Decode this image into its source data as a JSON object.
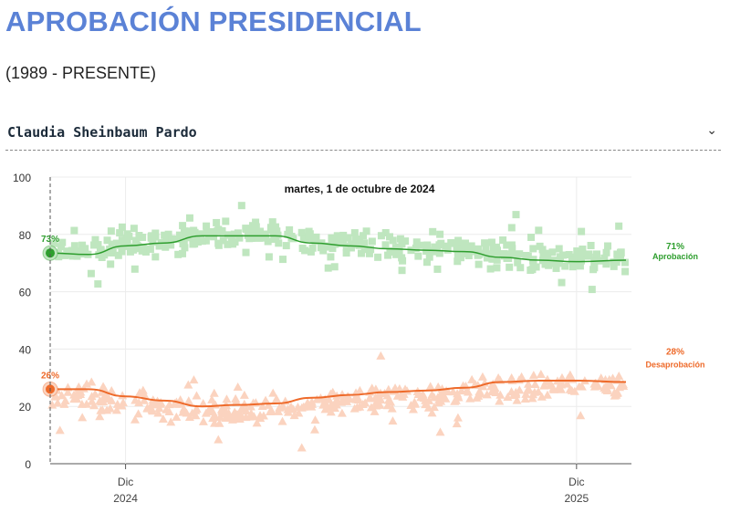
{
  "header": {
    "title": "APROBACIÓN PRESIDENCIAL",
    "subtitle": "(1989 - PRESENTE)"
  },
  "selector": {
    "value": "Claudia Sheinbaum Pardo",
    "icon": "chevron-down-icon"
  },
  "chart_data": {
    "type": "scatter",
    "hover_date": "martes, 1 de octubre de 2024",
    "ylim": [
      0,
      100
    ],
    "yticks": [
      0,
      20,
      40,
      60,
      80,
      100
    ],
    "xlim": [
      "2024-10-01",
      "2026-01-10"
    ],
    "xticks": [
      {
        "date": "2024-12-01",
        "label": "Dic",
        "year": "2024"
      },
      {
        "date": "2025-12-01",
        "label": "Dic",
        "year": "2025"
      }
    ],
    "grid": true,
    "series": [
      {
        "name": "Aprobación",
        "color": "#2e9e2e",
        "point_color": "#bfe6bf",
        "marker": "square",
        "hover_value": "73%",
        "last_value": "71%",
        "trend": [
          [
            "2024-10-01",
            73.5
          ],
          [
            "2024-11-01",
            73
          ],
          [
            "2024-12-01",
            76
          ],
          [
            "2025-01-01",
            77
          ],
          [
            "2025-02-01",
            79.5
          ],
          [
            "2025-03-01",
            79.5
          ],
          [
            "2025-04-01",
            79.5
          ],
          [
            "2025-05-01",
            77
          ],
          [
            "2025-06-01",
            76
          ],
          [
            "2025-07-01",
            75
          ],
          [
            "2025-08-01",
            74.5
          ],
          [
            "2025-09-01",
            74
          ],
          [
            "2025-10-01",
            72
          ],
          [
            "2025-11-01",
            71
          ],
          [
            "2025-12-01",
            70.5
          ],
          [
            "2026-01-10",
            71
          ]
        ]
      },
      {
        "name": "Desaprobación",
        "color": "#ee6a2a",
        "point_color": "#fbd3bf",
        "marker": "triangle",
        "hover_value": "26%",
        "last_value": "28%",
        "trend": [
          [
            "2024-10-01",
            26
          ],
          [
            "2024-11-01",
            26
          ],
          [
            "2024-12-01",
            23.5
          ],
          [
            "2025-01-01",
            22
          ],
          [
            "2025-02-01",
            20
          ],
          [
            "2025-03-01",
            20.5
          ],
          [
            "2025-04-01",
            21
          ],
          [
            "2025-05-01",
            23
          ],
          [
            "2025-06-01",
            24
          ],
          [
            "2025-07-01",
            25
          ],
          [
            "2025-08-01",
            25.5
          ],
          [
            "2025-09-01",
            26.5
          ],
          [
            "2025-10-01",
            28.5
          ],
          [
            "2025-11-01",
            29
          ],
          [
            "2025-12-01",
            29
          ],
          [
            "2026-01-10",
            28.5
          ]
        ]
      }
    ]
  }
}
